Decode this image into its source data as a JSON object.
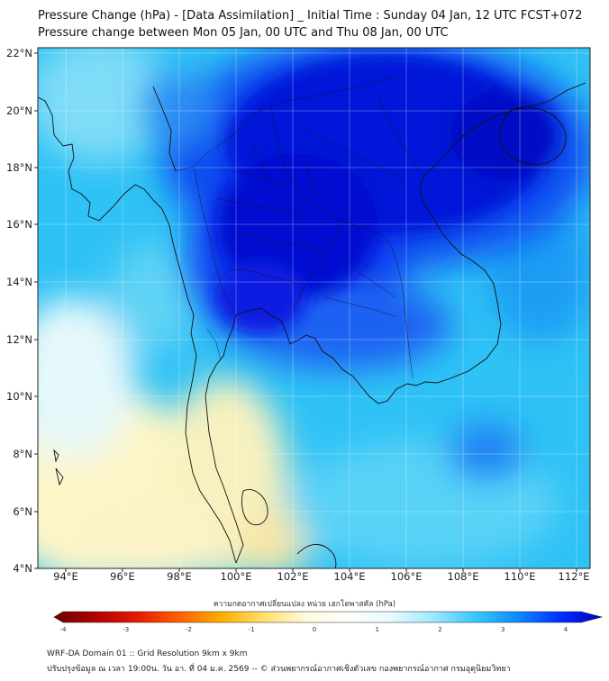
{
  "title_line1": "Pressure Change (hPa) - [Data Assimilation] _ Initial Time : Sunday 04 Jan, 12 UTC FCST+072",
  "title_line2": "Pressure change between Mon 05 Jan, 00 UTC and Thu 08 Jan, 00 UTC",
  "map": {
    "lon_range": [
      93,
      112.5
    ],
    "lat_range": [
      4,
      22
    ],
    "lon_ticks": [
      "94°E",
      "96°E",
      "98°E",
      "100°E",
      "102°E",
      "104°E",
      "106°E",
      "108°E",
      "110°E",
      "112°E"
    ],
    "lat_ticks": [
      "22°N",
      "20°N",
      "18°N",
      "16°N",
      "14°N",
      "12°N",
      "10°N",
      "8°N",
      "6°N",
      "4°N"
    ]
  },
  "colorbar": {
    "label": "ความกดอากาศเปลี่ยนแปลง หน่วย เฮกโตพาสคัล (hPa)",
    "range": [
      -4,
      4
    ],
    "ticks": [
      "-4",
      "-3",
      "-2",
      "-1",
      "0",
      "1",
      "2",
      "3",
      "4"
    ],
    "colors": [
      "#6b0000",
      "#b30000",
      "#e81a00",
      "#ff6400",
      "#ffb000",
      "#ffe070",
      "#fffbe0",
      "#ffffff",
      "#e6fbff",
      "#9de8ff",
      "#38c8ff",
      "#0a8cff",
      "#0030ff",
      "#0000c0"
    ]
  },
  "footer_line1": "WRF-DA Domain 01 :: Grid Resolution 9km x 9km",
  "footer_line2": "ปรับปรุงข้อมูล ณ เวลา 19:00น. วัน อา. ที่ 04 ม.ค. 2569 -- © ส่วนพยากรณ์อากาศเชิงตัวเลข กองพยากรณ์อากาศ กรมอุตุนิยมวิทยา"
}
